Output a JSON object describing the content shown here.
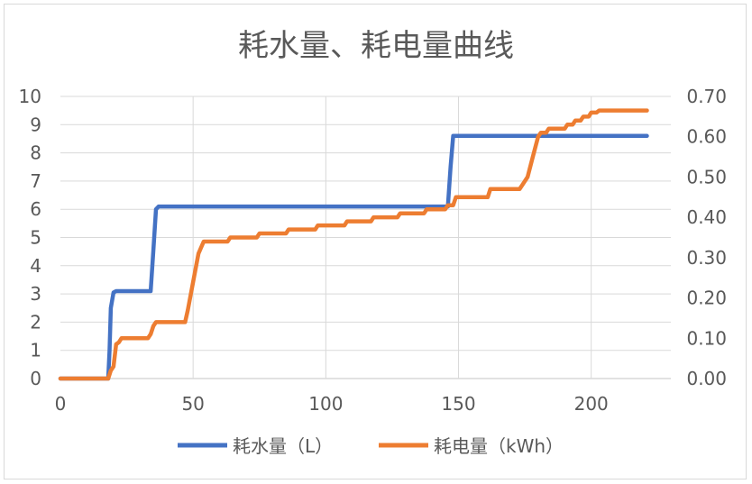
{
  "chart_data": {
    "type": "line",
    "title": "耗水量、耗电量曲线",
    "x_ticks": [
      "0",
      "50",
      "100",
      "150",
      "200"
    ],
    "x_tick_values": [
      0,
      50,
      100,
      150,
      200
    ],
    "xlim": [
      0,
      230
    ],
    "y_left_ticks": [
      "0",
      "1",
      "2",
      "3",
      "4",
      "5",
      "6",
      "7",
      "8",
      "9",
      "10"
    ],
    "y_left_lim": [
      0,
      10
    ],
    "y_right_ticks": [
      "0.00",
      "0.10",
      "0.20",
      "0.30",
      "0.40",
      "0.50",
      "0.60",
      "0.70"
    ],
    "y_right_lim": [
      0,
      0.7
    ],
    "grid": true,
    "legend_position": "bottom",
    "series": [
      {
        "name": "耗水量（L）",
        "axis": "left",
        "color": "#4472c4",
        "x": [
          0,
          18,
          18.5,
          19,
          20,
          21,
          34,
          35,
          36,
          37,
          146,
          147,
          148,
          221
        ],
        "y": [
          0,
          0,
          1,
          2.5,
          3.05,
          3.1,
          3.1,
          4.5,
          6.0,
          6.1,
          6.1,
          7.5,
          8.6,
          8.6
        ]
      },
      {
        "name": "耗电量（kWh）",
        "axis": "right",
        "color": "#ed7d31",
        "x": [
          0,
          18,
          19,
          20,
          21,
          22,
          23,
          33,
          34,
          35,
          36,
          47,
          48,
          50,
          52,
          54,
          63,
          64,
          74,
          75,
          85,
          86,
          96,
          97,
          107,
          108,
          117,
          118,
          127,
          128,
          137,
          138,
          145,
          146,
          148,
          149,
          161,
          162,
          173,
          174,
          176,
          178,
          180,
          181,
          183,
          184,
          190,
          191,
          193,
          194,
          196,
          197,
          199,
          200,
          202,
          203,
          221
        ],
        "y": [
          0,
          0,
          0.02,
          0.03,
          0.085,
          0.09,
          0.1,
          0.1,
          0.11,
          0.13,
          0.14,
          0.14,
          0.17,
          0.24,
          0.31,
          0.34,
          0.34,
          0.35,
          0.35,
          0.36,
          0.36,
          0.37,
          0.37,
          0.38,
          0.38,
          0.39,
          0.39,
          0.4,
          0.4,
          0.41,
          0.41,
          0.42,
          0.42,
          0.43,
          0.43,
          0.45,
          0.45,
          0.47,
          0.47,
          0.48,
          0.5,
          0.55,
          0.6,
          0.61,
          0.61,
          0.62,
          0.62,
          0.63,
          0.63,
          0.64,
          0.64,
          0.65,
          0.65,
          0.66,
          0.66,
          0.665,
          0.665
        ]
      }
    ]
  }
}
